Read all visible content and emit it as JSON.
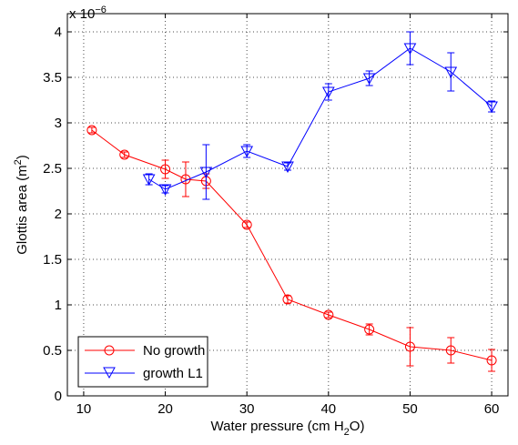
{
  "chart_data": {
    "type": "line",
    "xlabel": "Water pressure (cm H",
    "xlabel_sub": "2",
    "xlabel_end": "O)",
    "ylabel": "Glottis area (m",
    "ylabel_sup": "2",
    "ylabel_end": ")",
    "y_multiplier": "x 10",
    "y_multiplier_exp": "−6",
    "xlim": [
      8,
      62
    ],
    "ylim": [
      0,
      4.2
    ],
    "xticks": [
      10,
      20,
      30,
      40,
      50,
      60
    ],
    "yticks": [
      0,
      0.5,
      1,
      1.5,
      2,
      2.5,
      3,
      3.5,
      4
    ],
    "ytick_labels": [
      "0",
      "0.5",
      "1",
      "1.5",
      "2",
      "2.5",
      "3",
      "3.5",
      "4"
    ],
    "grid": true,
    "legend_position": "bottom-left",
    "series": [
      {
        "name": "No growth",
        "color": "#ff0000",
        "marker": "circle",
        "points": [
          {
            "x": 11,
            "y": 2.92,
            "err": 0.03
          },
          {
            "x": 15,
            "y": 2.65,
            "err": 0.03
          },
          {
            "x": 20,
            "y": 2.49,
            "err": 0.1
          },
          {
            "x": 22.5,
            "y": 2.38,
            "err": 0.19
          },
          {
            "x": 25,
            "y": 2.36,
            "err": 0.08
          },
          {
            "x": 30,
            "y": 1.88,
            "err": 0.03
          },
          {
            "x": 35,
            "y": 1.06,
            "err": 0.04
          },
          {
            "x": 40,
            "y": 0.89,
            "err": 0.03
          },
          {
            "x": 45,
            "y": 0.73,
            "err": 0.06
          },
          {
            "x": 50,
            "y": 0.54,
            "err": 0.21
          },
          {
            "x": 55,
            "y": 0.5,
            "err": 0.14
          },
          {
            "x": 60,
            "y": 0.39,
            "err": 0.12
          }
        ]
      },
      {
        "name": "growth L1",
        "color": "#0000ff",
        "marker": "triangle-down",
        "points": [
          {
            "x": 18,
            "y": 2.38,
            "err": 0.06
          },
          {
            "x": 20,
            "y": 2.27,
            "err": 0.04
          },
          {
            "x": 25,
            "y": 2.46,
            "err": 0.3
          },
          {
            "x": 30,
            "y": 2.69,
            "err": 0.07
          },
          {
            "x": 35,
            "y": 2.52,
            "err": 0.04
          },
          {
            "x": 40,
            "y": 3.34,
            "err": 0.09
          },
          {
            "x": 45,
            "y": 3.49,
            "err": 0.08
          },
          {
            "x": 50,
            "y": 3.82,
            "err": 0.18
          },
          {
            "x": 55,
            "y": 3.56,
            "err": 0.21
          },
          {
            "x": 60,
            "y": 3.18,
            "err": 0.06
          }
        ]
      }
    ]
  }
}
